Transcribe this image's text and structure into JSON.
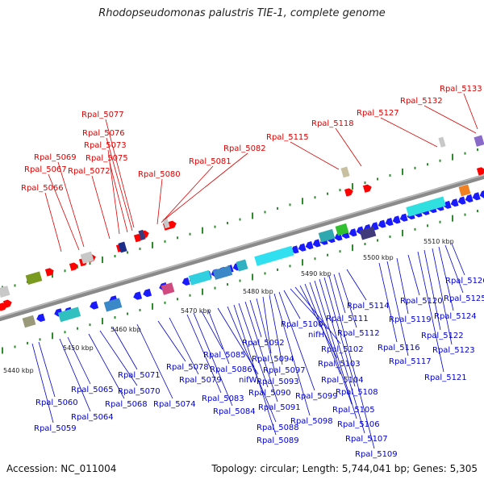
{
  "title": "Rhodopseudomonas palustris TIE-1, complete genome",
  "footer": {
    "accession": "Accession: NC_011004",
    "summary": "Topology: circular; Length: 5,744,041 bp; Genes: 5,305"
  },
  "colors": {
    "upper_label": "#dd0000",
    "lower_label": "#0000cc",
    "forward_gene": "#ff0000",
    "reverse_gene": "#1a1aff",
    "backbone": "#888888",
    "tick": "#2e8b2e",
    "scale_text": "#222222"
  },
  "scale_labels": [
    "5440 kbp",
    "5450 kbp",
    "5460 kbp",
    "5470 kbp",
    "5480 kbp",
    "5490 kbp",
    "5500 kbp",
    "5510 kbp"
  ],
  "upper_labels": [
    "Rpal_5066",
    "Rpal_5067",
    "Rpal_5069",
    "Rpal_5072",
    "Rpal_5073",
    "Rpal_5075",
    "Rpal_5076",
    "Rpal_5077",
    "Rpal_5080",
    "Rpal_5081",
    "Rpal_5082",
    "Rpal_5115",
    "Rpal_5118",
    "Rpal_5127",
    "Rpal_5132",
    "Rpal_5133"
  ],
  "lower_labels": [
    "Rpal_5059",
    "Rpal_5060",
    "Rpal_5064",
    "Rpal_5065",
    "Rpal_5068",
    "Rpal_5070",
    "Rpal_5071",
    "Rpal_5074",
    "Rpal_5078",
    "Rpal_5079",
    "Rpal_5083",
    "Rpal_5084",
    "Rpal_5085",
    "Rpal_5086",
    "nifW",
    "Rpal_5088",
    "Rpal_5089",
    "Rpal_5090",
    "Rpal_5091",
    "Rpal_5092",
    "Rpal_5093",
    "Rpal_5094",
    "Rpal_5097",
    "Rpal_5098",
    "Rpal_5099",
    "Rpal_5100",
    "nifH",
    "Rpal_5102",
    "Rpal_5103",
    "Rpal_5104",
    "Rpal_5105",
    "Rpal_5106",
    "Rpal_5107",
    "Rpal_5108",
    "Rpal_5109",
    "Rpal_5111",
    "Rpal_5112",
    "Rpal_5114",
    "Rpal_5116",
    "Rpal_5117",
    "Rpal_5119",
    "Rpal_5120",
    "Rpal_5121",
    "Rpal_5122",
    "Rpal_5123",
    "Rpal_5124",
    "Rpal_5125",
    "Rpal_5126"
  ]
}
